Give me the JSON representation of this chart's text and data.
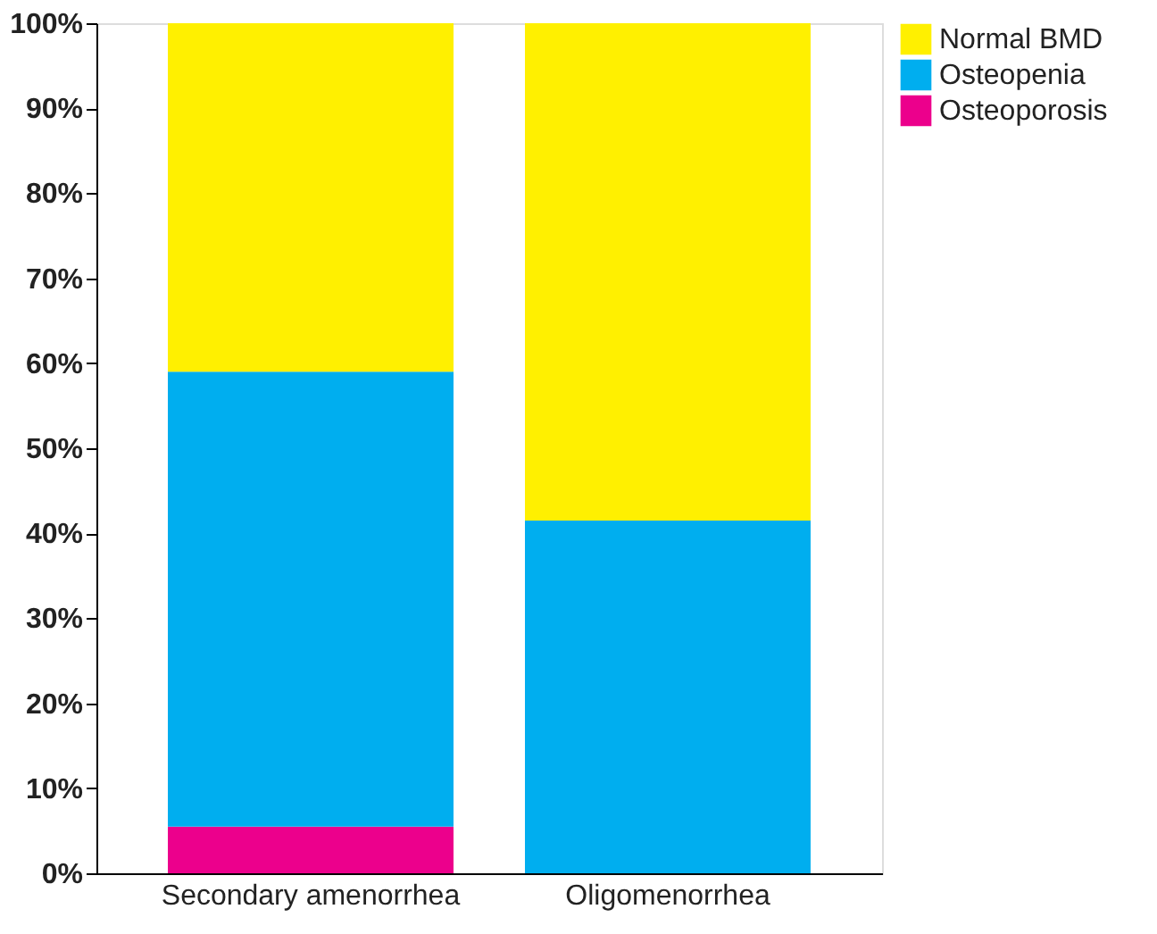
{
  "chart_data": {
    "type": "bar",
    "stacked": true,
    "categories": [
      "Secondary amenorrhea",
      "Oligomenorrhea"
    ],
    "series": [
      {
        "name": "Osteoporosis",
        "color": "#ec008c",
        "values": [
          5.5,
          0
        ]
      },
      {
        "name": "Osteopenia",
        "color": "#00aeef",
        "values": [
          53.5,
          41.5
        ]
      },
      {
        "name": "Normal BMD",
        "color": "#fff000",
        "values": [
          41,
          58.5
        ]
      }
    ],
    "ylim": [
      0,
      100
    ],
    "yticks": [
      {
        "value": 0,
        "label": "0%"
      },
      {
        "value": 10,
        "label": "10%"
      },
      {
        "value": 20,
        "label": "20%"
      },
      {
        "value": 30,
        "label": "30%"
      },
      {
        "value": 40,
        "label": "40%"
      },
      {
        "value": 50,
        "label": "50%"
      },
      {
        "value": 60,
        "label": "60%"
      },
      {
        "value": 70,
        "label": "70%"
      },
      {
        "value": 80,
        "label": "80%"
      },
      {
        "value": 90,
        "label": "90%"
      },
      {
        "value": 100,
        "label": "100%"
      }
    ],
    "grid": false,
    "legend": "right"
  }
}
